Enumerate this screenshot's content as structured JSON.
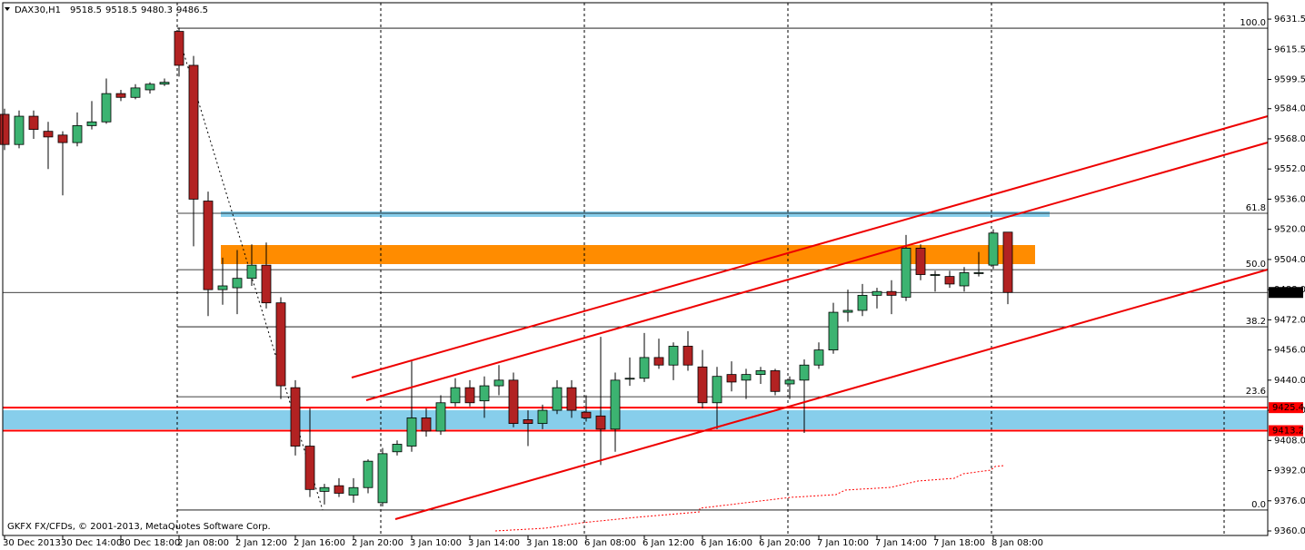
{
  "chart_data": {
    "type": "candlestick",
    "title": "DAX30,H1",
    "x": [
      "30 Dec 2013",
      null,
      null,
      null,
      "30 Dec 14:00",
      null,
      null,
      null,
      "30 Dec 18:00",
      null,
      null,
      null,
      "2 Jan 08:00",
      null,
      null,
      null,
      "2 Jan 12:00",
      null,
      null,
      null,
      "2 Jan 16:00",
      null,
      null,
      null,
      "2 Jan 20:00",
      null,
      null,
      null,
      "3 Jan 10:00",
      null,
      null,
      null,
      "3 Jan 14:00",
      null,
      null,
      null,
      "3 Jan 18:00",
      null,
      null,
      null,
      "6 Jan 08:00",
      null,
      null,
      null,
      "6 Jan 12:00",
      null,
      null,
      null,
      "6 Jan 16:00",
      null,
      null,
      null,
      "6 Jan 20:00",
      null,
      null,
      null,
      "7 Jan 10:00",
      null,
      null,
      null,
      "7 Jan 14:00",
      null,
      null,
      null,
      "7 Jan 18:00",
      null,
      null,
      null,
      "8 Jan 08:00",
      null
    ],
    "open": [
      9581,
      9565,
      9580,
      9572,
      9570,
      9566,
      9575,
      9577,
      9592,
      9590,
      9594,
      9597,
      9625,
      9607,
      9535,
      9488,
      9489,
      9494,
      9501,
      9481,
      9436,
      9405,
      9381,
      9384,
      9379,
      9383,
      9375,
      9402,
      9405,
      9420,
      9413,
      9428,
      9436,
      9429,
      9437,
      9440,
      9419,
      9417,
      9424,
      9436,
      9423,
      9421,
      9414,
      9441,
      9441,
      9452,
      9448,
      9458,
      9447,
      9428,
      9443,
      9440,
      9443,
      9445,
      9438,
      9440,
      9448,
      9456,
      9476,
      9477,
      9485,
      9487,
      9484,
      9510,
      9496,
      9495,
      9490,
      9497,
      9501,
      9518.5
    ],
    "high": [
      9584,
      9583,
      9583,
      9577,
      9572,
      9582,
      9588,
      9600,
      9594,
      9597,
      9598,
      9600,
      9627,
      9612,
      9540,
      9505,
      9509,
      9512,
      9513,
      9484,
      9440,
      9425,
      9385,
      9388,
      9388,
      9398,
      9404,
      9408,
      9450,
      9425,
      9432,
      9441,
      9440,
      9442,
      9448,
      9444,
      9424,
      9427,
      9440,
      9440,
      9432,
      9463,
      9444,
      9452,
      9465,
      9462,
      9460,
      9466,
      9456,
      9447,
      9450,
      9446,
      9447,
      9446,
      9442,
      9451,
      9460,
      9481,
      9488,
      9491,
      9489,
      9493,
      9517,
      9512,
      9498,
      9498,
      9500,
      9508,
      9520,
      9518.5
    ],
    "low": [
      9562,
      9563,
      9568,
      9552,
      9538,
      9564,
      9573,
      9576,
      9588,
      9589,
      9592,
      9596,
      9601,
      9511,
      9474,
      9480,
      9475,
      9490,
      9478,
      9430,
      9400,
      9378,
      9374,
      9378,
      9375,
      9380,
      9373,
      9400,
      9402,
      9410,
      9411,
      9426,
      9426,
      9420,
      9432,
      9415,
      9405,
      9414,
      9422,
      9420,
      9418,
      9395,
      9402,
      9437,
      9439,
      9446,
      9440,
      9445,
      9425,
      9414,
      9434,
      9430,
      9438,
      9432,
      9430,
      9412,
      9446,
      9454,
      9471,
      9474,
      9478,
      9475,
      9482,
      9493,
      9487,
      9489,
      9487,
      9495,
      9499,
      9480.3
    ],
    "close": [
      9565,
      9580,
      9573,
      9569,
      9566,
      9575,
      9577,
      9592,
      9590,
      9595,
      9597,
      9598,
      9607,
      9536,
      9488,
      9490,
      9494,
      9501,
      9481,
      9437,
      9405,
      9382,
      9383,
      9380,
      9383,
      9397,
      9401,
      9406,
      9420,
      9413,
      9428,
      9436,
      9428,
      9437,
      9440,
      9417,
      9417,
      9424,
      9436,
      9424,
      9420,
      9414,
      9440,
      9441,
      9452,
      9448,
      9458,
      9448,
      9428,
      9442,
      9439,
      9443,
      9445,
      9434,
      9440,
      9448,
      9456,
      9476,
      9477,
      9485,
      9487,
      9485,
      9510,
      9496,
      9496,
      9491,
      9497,
      9497,
      9518,
      9486.5
    ],
    "up_color": "#3cb371",
    "down_color": "#b22222",
    "ylim": [
      9357.6,
      9640.2
    ],
    "yticks": [
      9631.5,
      9615.5,
      9599.5,
      {
        "value": 9584,
        "label": "9584.0"
      },
      {
        "value": 9568,
        "label": "9568.0"
      },
      {
        "value": 9552,
        "label": "9552.0"
      },
      {
        "value": 9536,
        "label": "9536.0"
      },
      {
        "value": 9520,
        "label": "9520.0"
      },
      {
        "value": 9504,
        "label": "9504.0"
      },
      {
        "value": 9488,
        "label": "9488.0"
      },
      {
        "value": 9472,
        "label": "9472.0"
      },
      {
        "value": 9456,
        "label": "9456.0"
      },
      {
        "value": 9440,
        "label": "9440.0"
      },
      {
        "value": 9424,
        "label": "9424.0"
      },
      {
        "value": 9408,
        "label": "9408.0"
      },
      {
        "value": 9392,
        "label": "9392.0"
      },
      {
        "value": 9376,
        "label": "9376.0"
      },
      {
        "value": 9360,
        "label": "9360.0"
      }
    ],
    "fibo_levels": [
      {
        "label": "100.0",
        "value": 9626.7
      },
      {
        "label": "61.8",
        "value": 9528.5
      },
      {
        "label": "50.0",
        "value": 9498.6
      },
      {
        "label": "38.2",
        "value": 9468.3
      },
      {
        "label": "23.6",
        "value": 9431.2
      },
      {
        "label": "0.0",
        "value": 9371.1
      }
    ],
    "price_lines": [
      {
        "value": 9425.4,
        "color": "#ff0000"
      },
      {
        "value": 9413.2,
        "color": "#ff0000"
      }
    ],
    "copyright": "GKFX FX/CFDs, © 2001-2013, MetaQuotes Software Corp."
  }
}
